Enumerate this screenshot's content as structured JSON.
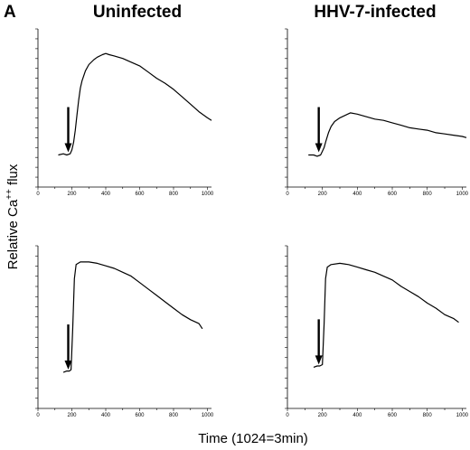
{
  "figure": {
    "panel_letter": "A",
    "column_titles": [
      "Uninfected",
      "HHV-7-infected"
    ],
    "ylabel_main": "Relative Ca",
    "ylabel_sup": "++",
    "ylabel_tail": " flux",
    "xlabel": "Time (1024=3min)"
  },
  "chart_data": [
    {
      "type": "line",
      "column": "Uninfected",
      "row": 1,
      "xlim": [
        0,
        1024
      ],
      "ylim": [
        0,
        100
      ],
      "xticks": [
        0,
        200,
        400,
        600,
        800,
        1000
      ],
      "arrow_x": 200,
      "x": [
        120,
        150,
        170,
        190,
        200,
        210,
        220,
        230,
        240,
        250,
        260,
        280,
        300,
        330,
        350,
        380,
        400,
        420,
        450,
        500,
        550,
        600,
        650,
        700,
        750,
        800,
        850,
        900,
        950,
        1000,
        1024
      ],
      "values": [
        4,
        5,
        4,
        5,
        8,
        14,
        24,
        36,
        48,
        58,
        64,
        72,
        77,
        81,
        83,
        85,
        86,
        85,
        84,
        82,
        79,
        76,
        71,
        66,
        62,
        57,
        51,
        45,
        39,
        34,
        32
      ]
    },
    {
      "type": "line",
      "column": "HHV-7-infected",
      "row": 1,
      "xlim": [
        0,
        1024
      ],
      "ylim": [
        0,
        100
      ],
      "xticks": [
        0,
        200,
        400,
        600,
        800,
        1000
      ],
      "arrow_x": 200,
      "x": [
        120,
        150,
        170,
        190,
        200,
        210,
        220,
        235,
        250,
        270,
        300,
        330,
        360,
        400,
        450,
        500,
        550,
        600,
        650,
        700,
        750,
        800,
        850,
        900,
        950,
        1000,
        1024
      ],
      "values": [
        4,
        4,
        3,
        4,
        7,
        10,
        15,
        22,
        27,
        31,
        34,
        36,
        38,
        37,
        35,
        33,
        32,
        30,
        28,
        26,
        25,
        24,
        22,
        21,
        20,
        19,
        18
      ]
    },
    {
      "type": "line",
      "column": "Uninfected",
      "row": 2,
      "xlim": [
        0,
        1024
      ],
      "ylim": [
        0,
        100
      ],
      "xticks": [
        0,
        200,
        400,
        600,
        800,
        1000
      ],
      "arrow_x": 200,
      "x": [
        150,
        170,
        185,
        195,
        205,
        215,
        225,
        250,
        300,
        350,
        400,
        450,
        500,
        550,
        600,
        650,
        700,
        750,
        800,
        850,
        900,
        950,
        970
      ],
      "values": [
        7,
        8,
        8,
        9,
        40,
        80,
        91,
        93,
        93,
        92,
        90,
        88,
        85,
        82,
        77,
        72,
        67,
        62,
        57,
        52,
        48,
        45,
        41
      ]
    },
    {
      "type": "line",
      "column": "HHV-7-infected",
      "row": 2,
      "xlim": [
        0,
        1024
      ],
      "ylim": [
        0,
        100
      ],
      "xticks": [
        0,
        200,
        400,
        600,
        800,
        1000
      ],
      "arrow_x": 200,
      "x": [
        150,
        170,
        185,
        200,
        210,
        218,
        228,
        250,
        300,
        350,
        400,
        450,
        500,
        550,
        600,
        650,
        700,
        750,
        800,
        850,
        900,
        950,
        980
      ],
      "values": [
        11,
        12,
        12,
        13,
        45,
        80,
        89,
        91,
        92,
        91,
        89,
        87,
        85,
        82,
        79,
        74,
        70,
        66,
        61,
        57,
        52,
        49,
        46
      ]
    }
  ]
}
